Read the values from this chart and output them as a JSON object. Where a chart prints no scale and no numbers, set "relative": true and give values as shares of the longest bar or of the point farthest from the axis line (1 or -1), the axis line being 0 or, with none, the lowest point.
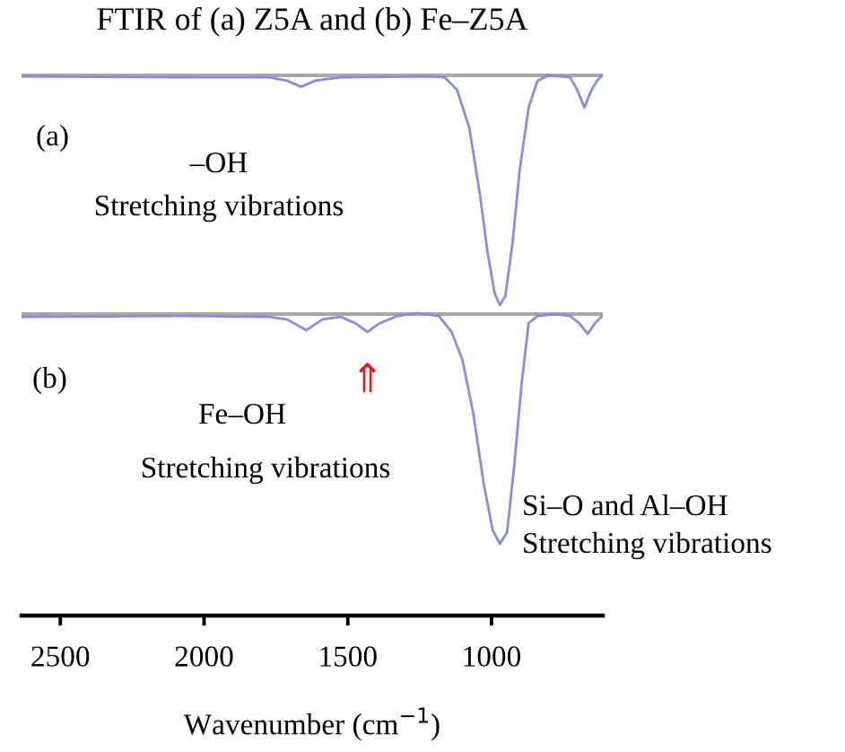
{
  "chart_data": [
    {
      "type": "line",
      "title": "FTIR of (a) Z5A and (b) Fe–Z5A",
      "relative": true,
      "xlim": [
        2635,
        613
      ],
      "tick_labels": false,
      "annotations": [
        "(a)",
        "–OH",
        "Stretching vibrations"
      ],
      "series": [
        {
          "color": "#8a8ae6",
          "x": [
            2635,
            2086,
            1775,
            1712,
            1662,
            1613,
            1525,
            1214,
            1164,
            1120,
            1077,
            1039,
            1014,
            989,
            971,
            952,
            927,
            902,
            871,
            840,
            802,
            727,
            702,
            677,
            652,
            633,
            615
          ],
          "values": [
            -0.004,
            -0.008,
            -0.008,
            -0.023,
            -0.05,
            -0.023,
            -0.008,
            -0.004,
            -0.008,
            -0.063,
            -0.23,
            -0.53,
            -0.77,
            -0.95,
            -1,
            -0.96,
            -0.73,
            -0.41,
            -0.14,
            -0.023,
            0,
            -0.008,
            -0.063,
            -0.14,
            -0.063,
            -0.023,
            0
          ]
        }
      ]
    },
    {
      "type": "line",
      "relative": true,
      "xlim": [
        2635,
        613
      ],
      "xticks": [
        2500,
        2000,
        1500,
        1000
      ],
      "xlabel": "Wavenumber (cm$^{−1}$)",
      "tick_labels": "x",
      "annotations": [
        "(b)",
        "Fe–OH",
        "Stretching vibrations",
        "Si–O and Al–OH",
        "Stretching vibrations",
        {
          "text": "⇑",
          "x": 1432,
          "y": -0.078
        }
      ],
      "series": [
        {
          "color": "#8a8ae6",
          "x": [
            2635,
            2086,
            1775,
            1712,
            1644,
            1588,
            1525,
            1475,
            1432,
            1388,
            1326,
            1257,
            1183,
            1139,
            1101,
            1064,
            1027,
            996,
            971,
            946,
            921,
            896,
            871,
            840,
            777,
            727,
            696,
            665,
            640,
            615
          ],
          "values": [
            -0.012,
            -0.008,
            -0.012,
            -0.023,
            -0.07,
            -0.023,
            -0.012,
            -0.039,
            -0.078,
            -0.039,
            -0.008,
            0.004,
            -0.008,
            -0.078,
            -0.2,
            -0.43,
            -0.74,
            -0.94,
            -1,
            -0.95,
            -0.66,
            -0.31,
            -0.039,
            -0.008,
            0,
            -0.008,
            -0.039,
            -0.086,
            -0.039,
            -0.008
          ]
        }
      ]
    }
  ]
}
